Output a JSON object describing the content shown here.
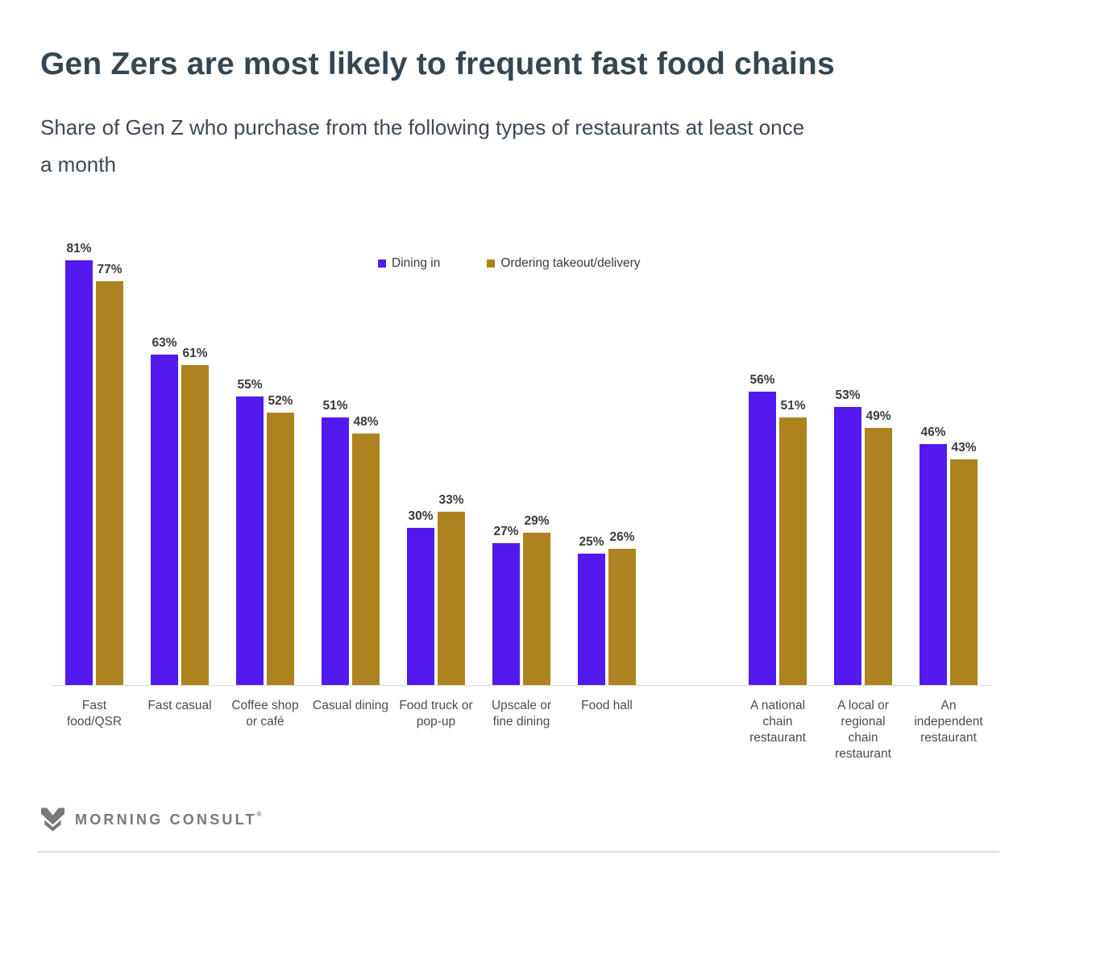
{
  "page": {
    "title": "Gen Zers are most likely to frequent fast food chains",
    "subtitle": "Share of Gen Z who purchase from the following types of restaurants at least once\na month"
  },
  "legend": {
    "items": [
      {
        "label": "Dining in",
        "color": "#521AEE"
      },
      {
        "label": "Ordering takeout/delivery",
        "color": "#AC831F"
      }
    ]
  },
  "chart_data": {
    "type": "bar",
    "title": "Gen Zers are most likely to frequent fast food chains",
    "subtitle": "Share of Gen Z who purchase from the following types of restaurants at least once a month",
    "categories": [
      "Fast food/QSR",
      "Fast casual",
      "Coffee shop or café",
      "Casual dining",
      "Food truck or pop-up",
      "Upscale or fine dining",
      "Food hall",
      "A national chain restaurant",
      "A local or regional chain restaurant",
      "An independent restaurant"
    ],
    "categories_display": [
      "Fast\nfood/QSR",
      "Fast casual",
      "Coffee shop\nor café",
      "Casual dining",
      "Food truck or\npop-up",
      "Upscale or\nfine dining",
      "Food hall",
      "A national\nchain\nrestaurant",
      "A local or\nregional\nchain\nrestaurant",
      "An\nindependent\nrestaurant"
    ],
    "series": [
      {
        "name": "Dining in",
        "color": "#521AEE",
        "values": [
          81,
          63,
          55,
          51,
          30,
          27,
          25,
          56,
          53,
          46
        ]
      },
      {
        "name": "Ordering takeout/delivery",
        "color": "#AC831F",
        "values": [
          77,
          61,
          52,
          48,
          33,
          29,
          26,
          51,
          49,
          43
        ]
      }
    ],
    "value_suffix": "%",
    "ylim": [
      0,
      100
    ],
    "grid": false,
    "legend_position": "top-center",
    "gap_after_index": 6,
    "value_labels_shown": true
  },
  "footer": {
    "brand": "MORNING CONSULT",
    "registered_mark": "®",
    "logo_icon": "morning-consult-m-logo",
    "logo_color": "#77797c"
  }
}
